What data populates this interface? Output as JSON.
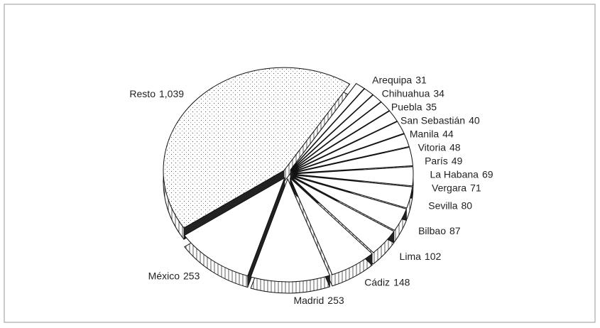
{
  "chart_data": {
    "type": "pie",
    "categories": [
      "Resto",
      "México",
      "Madrid",
      "Cádiz",
      "Lima",
      "Bilbao",
      "Sevilla",
      "Vergara",
      "La Habana",
      "París",
      "Vitoria",
      "Manila",
      "San Sebastián",
      "Puebla",
      "Chihuahua",
      "Arequipa"
    ],
    "values": [
      1039,
      253,
      253,
      148,
      102,
      87,
      80,
      71,
      69,
      49,
      48,
      44,
      40,
      35,
      34,
      31
    ],
    "value_labels": [
      "1,039",
      "253",
      "253",
      "148",
      "102",
      "87",
      "80",
      "71",
      "69",
      "49",
      "48",
      "44",
      "40",
      "35",
      "34",
      "31"
    ],
    "colors": [
      "#ffffff"
    ]
  }
}
